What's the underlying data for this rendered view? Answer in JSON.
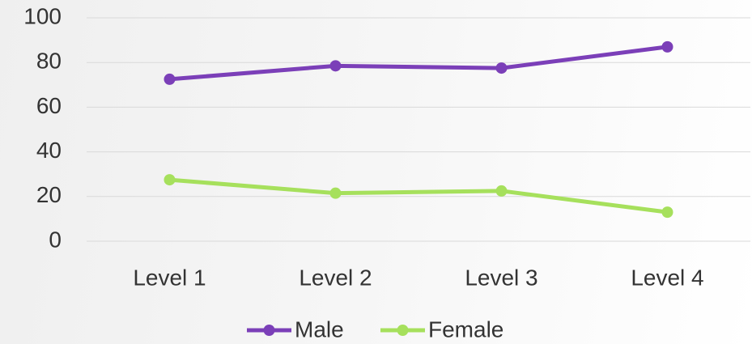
{
  "chart_data": {
    "type": "line",
    "categories": [
      "Level 1",
      "Level 2",
      "Level 3",
      "Level 4"
    ],
    "series": [
      {
        "name": "Male",
        "color": "#7b3fb8",
        "values": [
          72.5,
          78.5,
          77.5,
          87
        ]
      },
      {
        "name": "Female",
        "color": "#a6e05c",
        "values": [
          27.5,
          21.5,
          22.5,
          13
        ]
      }
    ],
    "ylim": [
      0,
      100
    ],
    "yticks": [
      0,
      20,
      40,
      60,
      80,
      100
    ],
    "grid": true,
    "legend": "bottom"
  }
}
